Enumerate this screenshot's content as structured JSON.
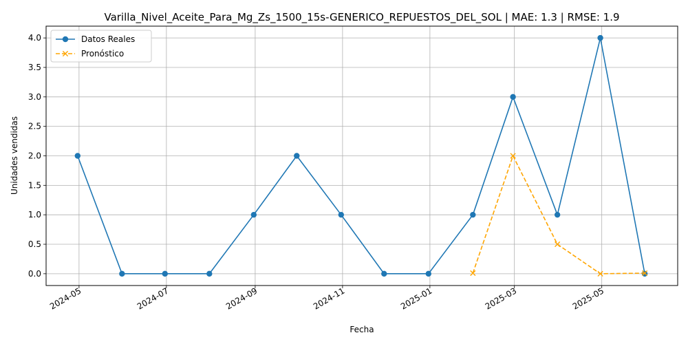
{
  "chart_data": {
    "type": "line",
    "title": "Varilla_Nivel_Aceite_Para_Mg_Zs_1500_15s-GENERICO_REPUESTOS_DEL_SOL | MAE: 1.3 | RMSE: 1.9",
    "xlabel": "Fecha",
    "ylabel": "Unidades vendidas",
    "xlim": [
      "2024-04-08",
      "2025-06-23"
    ],
    "ylim": [
      -0.2,
      4.2
    ],
    "x_ticks": [
      "2024-05",
      "2024-07",
      "2024-09",
      "2024-11",
      "2025-01",
      "2025-03",
      "2025-05"
    ],
    "x_tick_dates": [
      "2024-05-01",
      "2024-07-01",
      "2024-09-01",
      "2024-11-01",
      "2025-01-01",
      "2025-03-01",
      "2025-05-01"
    ],
    "y_ticks": [
      "0.0",
      "0.5",
      "1.0",
      "1.5",
      "2.0",
      "2.5",
      "3.0",
      "3.5",
      "4.0"
    ],
    "y_tick_values": [
      0,
      0.5,
      1,
      1.5,
      2,
      2.5,
      3,
      3.5,
      4
    ],
    "grid": true,
    "legend_position": "top-left",
    "series": [
      {
        "name": "Datos Reales",
        "color": "#1f77b4",
        "style": "solid",
        "marker": "circle",
        "x": [
          "2024-04-30",
          "2024-05-31",
          "2024-06-30",
          "2024-07-31",
          "2024-08-31",
          "2024-09-30",
          "2024-10-31",
          "2024-11-30",
          "2024-12-31",
          "2025-01-31",
          "2025-02-28",
          "2025-03-31",
          "2025-04-30",
          "2025-05-31"
        ],
        "values": [
          2,
          0,
          0,
          0,
          1,
          2,
          1,
          0,
          0,
          1,
          3,
          1,
          4,
          0
        ]
      },
      {
        "name": "Pronóstico",
        "color": "#ffa500",
        "style": "dashed",
        "marker": "x",
        "x": [
          "2025-01-31",
          "2025-02-28",
          "2025-03-31",
          "2025-04-30",
          "2025-05-31"
        ],
        "values": [
          0.01,
          2.0,
          0.5,
          0.0,
          0.01
        ]
      }
    ]
  }
}
